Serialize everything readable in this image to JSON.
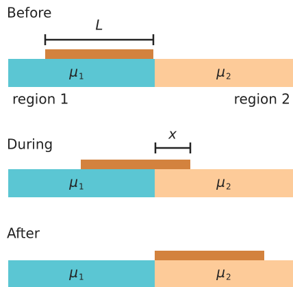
{
  "panels": [
    {
      "title": "Before",
      "dimension": "L",
      "blocks": [
        {
          "symbol": "μ",
          "subscript": "1"
        },
        {
          "symbol": "μ",
          "subscript": "2"
        }
      ],
      "regions": [
        "region 1",
        "region 2"
      ]
    },
    {
      "title": "During",
      "dimension": "x",
      "blocks": [
        {
          "symbol": "μ",
          "subscript": "1"
        },
        {
          "symbol": "μ",
          "subscript": "2"
        }
      ]
    },
    {
      "title": "After",
      "blocks": [
        {
          "symbol": "μ",
          "subscript": "1"
        },
        {
          "symbol": "μ",
          "subscript": "2"
        }
      ]
    }
  ]
}
